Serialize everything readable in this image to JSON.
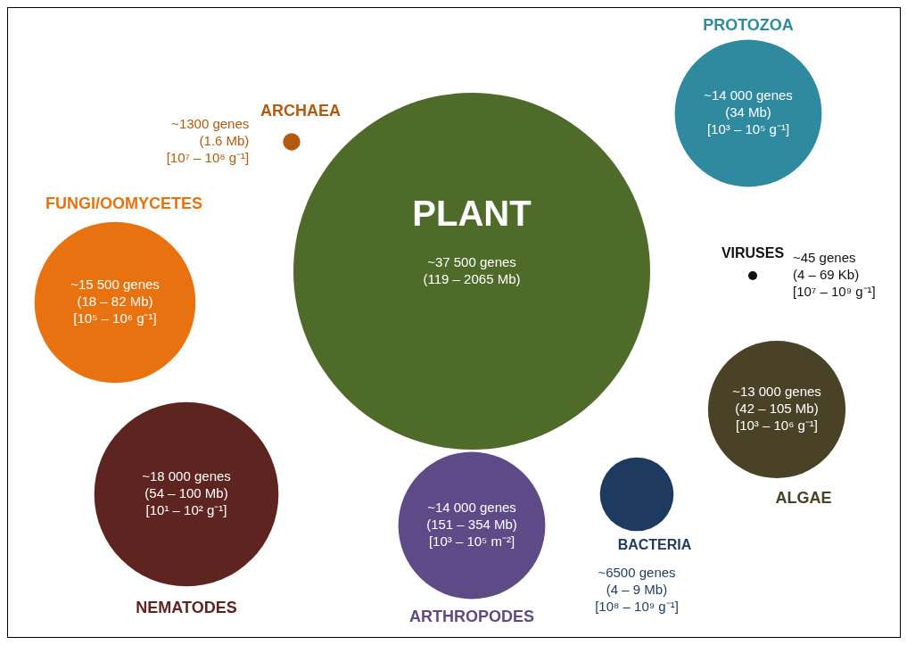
{
  "chart_data": {
    "type": "other",
    "categories": [
      "PLANT",
      "PROTOZOA",
      "ARCHAEA",
      "FUNGI/OOMYCETES",
      "VIRUSES",
      "ALGAE",
      "BACTERIA",
      "ARTHROPODES",
      "NEMATODES"
    ],
    "values": [
      37500,
      14000,
      1300,
      15500,
      45,
      13000,
      6500,
      14000,
      18000
    ],
    "colors": [
      "#4e6b2a",
      "#2f8aa0",
      "#b45a10",
      "#e8720f",
      "#111111",
      "#4a4226",
      "#1f3a5f",
      "#5e4a86",
      "#5e2420"
    ],
    "value_labels": [
      "~37 500 genes\n(119 – 2065 Mb)",
      "~14 000 genes\n(34 Mb)\n[10³ – 10⁵ g⁻¹]",
      "~1300 genes\n(1.6 Mb)\n[10⁷ – 10⁸ g⁻¹]",
      "~15 500 genes\n(18 – 82 Mb)\n[10⁵ – 10⁶ g⁻¹]",
      "~45 genes\n(4 – 69 Kb)\n[10⁷ – 10⁹ g⁻¹]",
      "~13 000 genes\n(42 – 105 Mb)\n[10³ – 10⁶ g⁻¹]",
      "~6500 genes\n(4 – 9 Mb)\n[10⁸ – 10⁹ g⁻¹]",
      "~14 000 genes\n(151 – 354 Mb)\n[10³ – 10⁵ m⁻²]",
      "~18 000 genes\n(54 – 100 Mb)\n[10¹ – 10² g⁻¹]"
    ]
  }
}
